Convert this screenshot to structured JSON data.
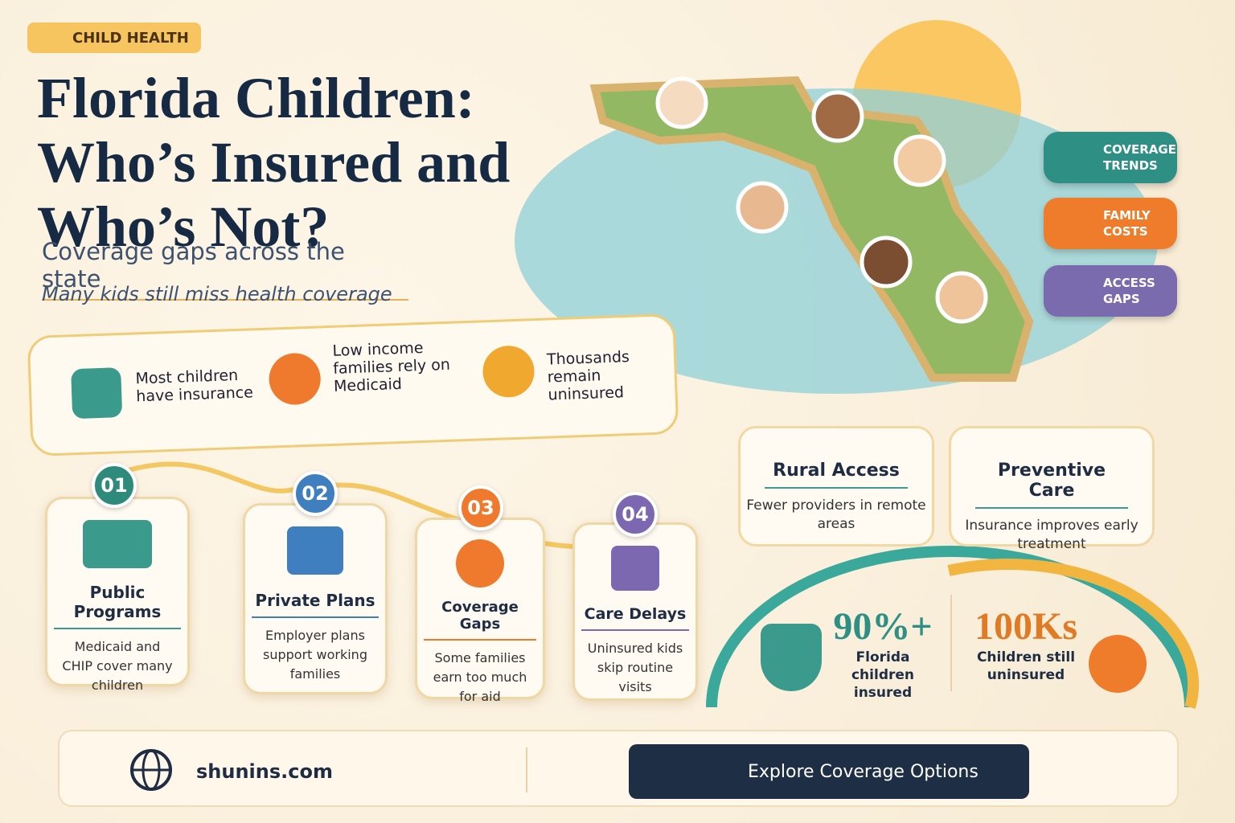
{
  "header": {
    "badge": "CHILD HEALTH",
    "title_lines": [
      "Florida Children:",
      "Who’s Insured and",
      "Who’s Not?"
    ],
    "subtitle": "Coverage gaps across the state",
    "tagline": "Many kids still miss health coverage"
  },
  "highlights": [
    "Most children have insurance",
    "Low income families rely on Medicaid",
    "Thousands remain uninsured"
  ],
  "steps": [
    {
      "number": "01",
      "title": "Public Programs",
      "text": "Medicaid and CHIP cover many children"
    },
    {
      "number": "02",
      "title": "Private Plans",
      "text": "Employer plans support working families"
    },
    {
      "number": "03",
      "title": "Coverage Gaps",
      "text": "Some families earn too much for aid"
    },
    {
      "number": "04",
      "title": "Care Delays",
      "text": "Uninsured kids skip routine visits"
    }
  ],
  "side_buttons": [
    "COVERAGE TRENDS",
    "FAMILY COSTS",
    "ACCESS GAPS"
  ],
  "cards": [
    {
      "title": "Rural Access",
      "text": "Fewer providers in remote areas"
    },
    {
      "title": "Preventive Care",
      "text": "Insurance improves early treatment"
    }
  ],
  "stats": [
    {
      "value": "90%+",
      "label": "Florida children insured"
    },
    {
      "value": "100Ks",
      "label": "Children still uninsured"
    }
  ],
  "footer": {
    "website": "shunins.com",
    "button": "Explore Coverage Options"
  }
}
